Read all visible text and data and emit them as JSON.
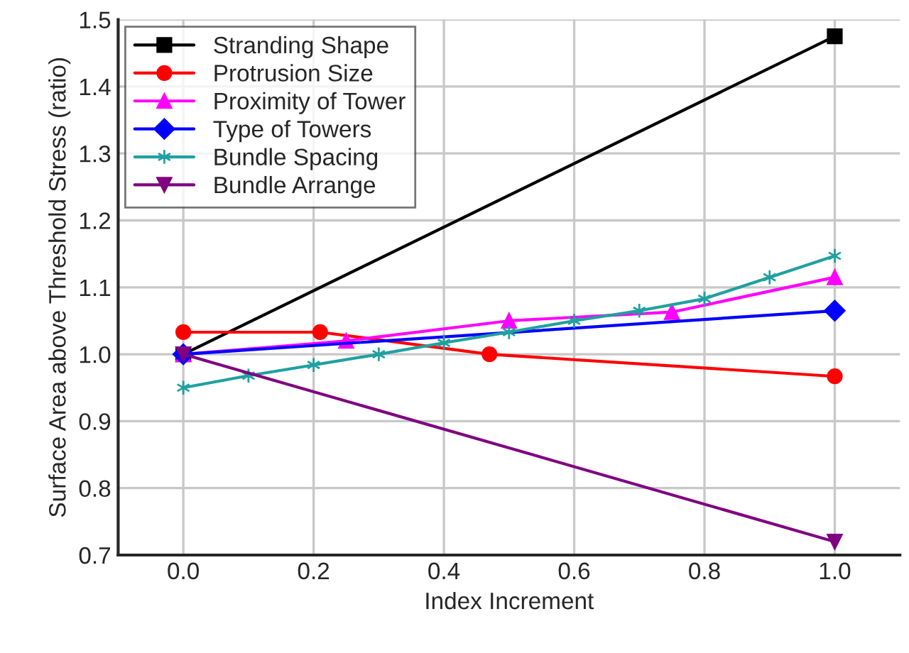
{
  "chart_data": {
    "type": "line",
    "xlabel": "Index Increment",
    "ylabel": "Surface Area above Threshold Stress (ratio)",
    "series": [
      {
        "name": "Stranding Shape",
        "color": "#000000",
        "marker": "square",
        "x": [
          0,
          1
        ],
        "values": [
          1.0,
          1.475
        ]
      },
      {
        "name": "Protrusion Size",
        "color": "#ff0000",
        "marker": "circle",
        "x": [
          0,
          0.21,
          0.47,
          1
        ],
        "values": [
          1.033,
          1.033,
          1.0,
          0.967
        ]
      },
      {
        "name": "Proximity of Tower",
        "color": "#ff00ff",
        "marker": "triangle",
        "x": [
          0,
          0.25,
          0.5,
          0.75,
          1
        ],
        "values": [
          1.0,
          1.02,
          1.05,
          1.063,
          1.115
        ]
      },
      {
        "name": "Type of Towers",
        "color": "#0000ff",
        "marker": "diamond",
        "x": [
          0,
          1
        ],
        "values": [
          1.0,
          1.065
        ]
      },
      {
        "name": "Bundle Spacing",
        "color": "#20a0a0",
        "marker": "cross",
        "x": [
          0,
          0.1,
          0.2,
          0.3,
          0.4,
          0.5,
          0.6,
          0.7,
          0.8,
          0.9,
          1.0
        ],
        "values": [
          0.95,
          0.968,
          0.984,
          1.0,
          1.017,
          1.033,
          1.05,
          1.065,
          1.083,
          1.115,
          1.147
        ]
      },
      {
        "name": "Bundle Arrange",
        "color": "#800080",
        "marker": "triangle_down",
        "x": [
          0,
          1
        ],
        "values": [
          1.0,
          0.72
        ]
      }
    ],
    "xlim": [
      -0.1,
      1.1
    ],
    "ylim": [
      0.7,
      1.5
    ],
    "xticks": [
      {
        "value": 0,
        "label": "0.0"
      },
      0.2,
      0.4,
      0.6,
      0.8,
      {
        "value": 1,
        "label": "1.0"
      }
    ],
    "yticks": [
      0.7,
      0.8,
      0.9,
      {
        "value": 1,
        "label": "1.0"
      },
      1.1,
      1.2,
      1.3,
      1.4,
      1.5
    ],
    "grid": true,
    "legend": "top left",
    "line_style": "solid"
  }
}
